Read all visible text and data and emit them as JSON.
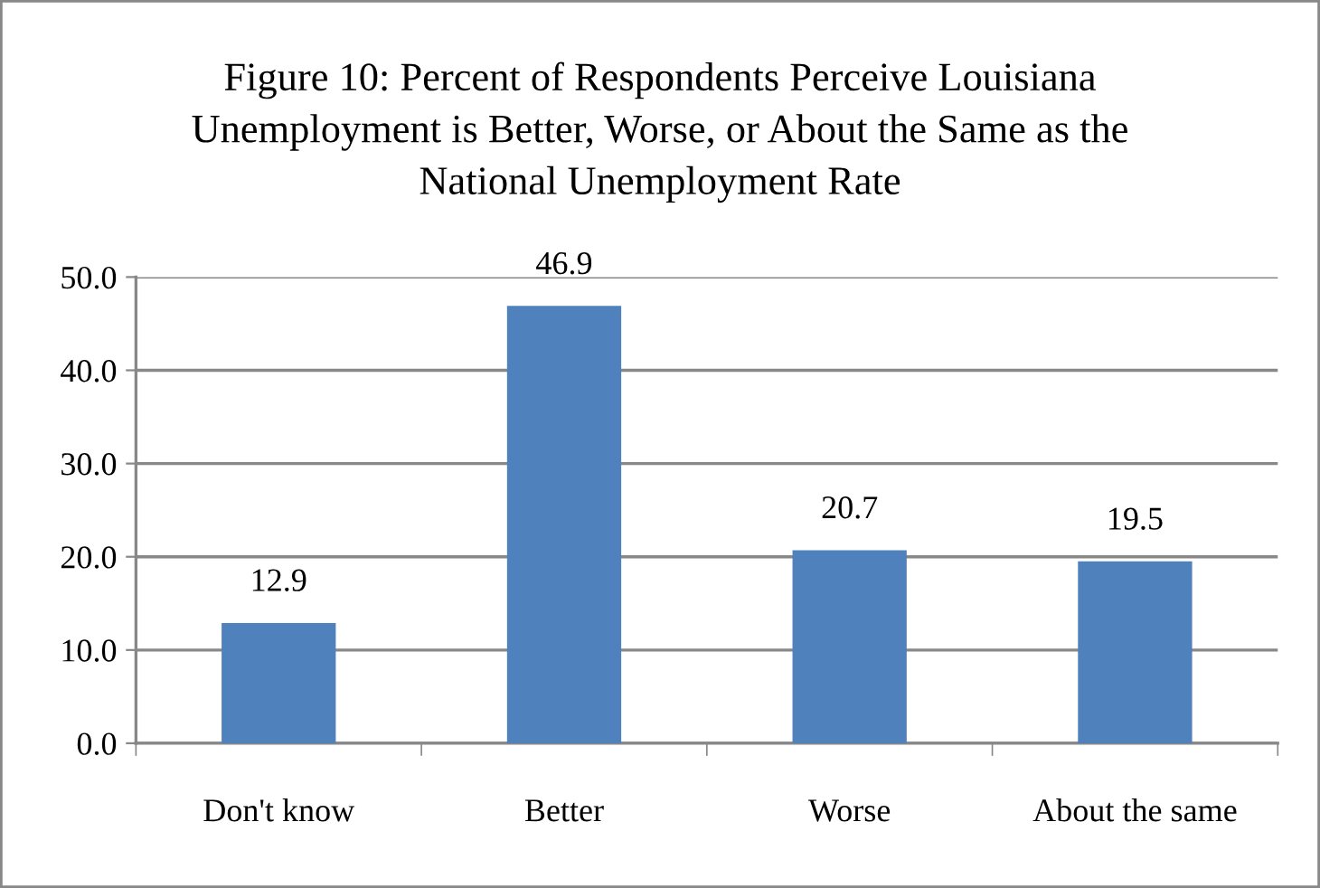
{
  "chart_data": {
    "type": "bar",
    "title": "Figure 10: Percent of Respondents Perceive Louisiana\nUnemployment is Better, Worse, or About the Same as the\nNational Unemployment Rate",
    "categories": [
      "Don't know",
      "Better",
      "Worse",
      "About the same"
    ],
    "values": [
      12.9,
      46.9,
      20.7,
      19.5
    ],
    "color": "#4f81bd",
    "data_labels": true,
    "ylim": [
      0,
      50
    ],
    "yticks": [
      {
        "value": 0,
        "label": "0.0"
      },
      {
        "value": 10,
        "label": "10.0"
      },
      {
        "value": 20,
        "label": "20.0"
      },
      {
        "value": 30,
        "label": "30.0"
      },
      {
        "value": 40,
        "label": "40.0"
      },
      {
        "value": 50,
        "label": "50.0"
      }
    ],
    "grid": "y"
  }
}
